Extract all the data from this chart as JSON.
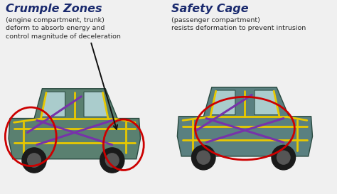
{
  "background_color": "#f0f0f0",
  "title_left": "Crumple Zones",
  "title_right": "Safety Cage",
  "subtitle_left": "(engine compartment, trunk)\ndeform to absorb energy and\ncontrol magnitude of deceleration",
  "subtitle_right": "(passenger compartment)\nresists deformation to prevent intrusion",
  "title_color": "#1a2a6e",
  "subtitle_color": "#2a2a2a",
  "circle_color": "#cc0000",
  "arrow_color": "#111111",
  "title_fontsize": 11.5,
  "subtitle_fontsize": 6.8,
  "dpi": 100,
  "car_body_color": "#5a8070",
  "car_edge_color": "#2a4a40",
  "yellow_beam": "#e8c800",
  "purple_brace": "#7733aa",
  "wheel_color": "#1a1a1a",
  "window_color": "#aacccc"
}
